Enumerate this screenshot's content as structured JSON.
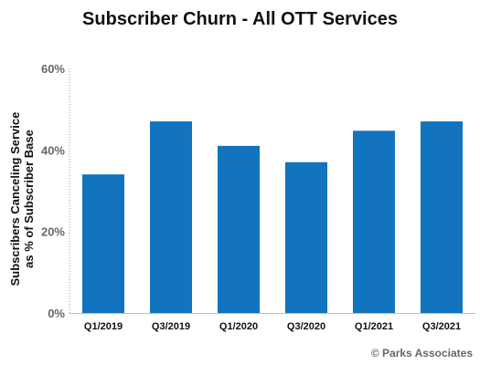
{
  "chart_data": {
    "type": "bar",
    "title": "Subscriber Churn - All OTT Services",
    "ylabel_lines": [
      "Subscribers Canceling Service",
      "as % of Subscriber Base"
    ],
    "xlabel": "",
    "categories": [
      "Q1/2019",
      "Q3/2019",
      "Q1/2020",
      "Q3/2020",
      "Q1/2021",
      "Q3/2021"
    ],
    "values": [
      34,
      47,
      41,
      37,
      44.7,
      47
    ],
    "ylim": [
      0,
      60
    ],
    "yticks": [
      0,
      20,
      40,
      60
    ],
    "ytick_labels": [
      "0%",
      "20%",
      "40%",
      "60%"
    ],
    "grid": false,
    "bar_color": "#1273BE"
  },
  "credit": "© Parks Associates"
}
